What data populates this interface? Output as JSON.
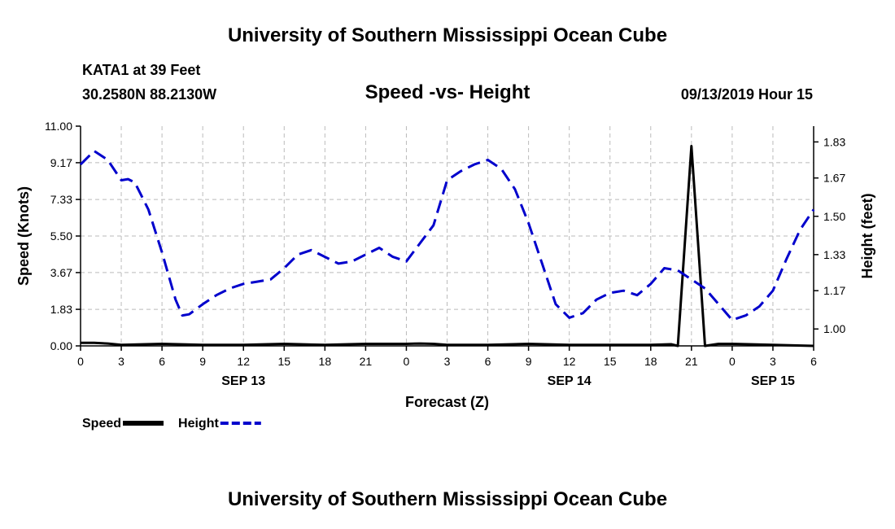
{
  "header": {
    "title_top": "University of Southern Mississippi Ocean Cube",
    "station": "KATA1 at 39 Feet",
    "coords": "30.2580N 88.2130W",
    "date": "09/13/2019 Hour 15"
  },
  "footer": {
    "title_bottom": "University of Southern Mississippi Ocean Cube"
  },
  "colors": {
    "speed": "#000000",
    "height": "#0000cc",
    "grid": "#bbbbbb"
  },
  "chart_data": {
    "type": "line",
    "title": "Speed -vs- Height",
    "xlabel": "Forecast (Z)",
    "ylabel_left": "Speed (Knots)",
    "ylabel_right": "Height (feet)",
    "x_range": [
      0,
      54
    ],
    "x_ticks": [
      {
        "x": 0,
        "label": "0"
      },
      {
        "x": 3,
        "label": "3"
      },
      {
        "x": 6,
        "label": "6"
      },
      {
        "x": 9,
        "label": "9"
      },
      {
        "x": 12,
        "label": "12"
      },
      {
        "x": 15,
        "label": "15"
      },
      {
        "x": 18,
        "label": "18"
      },
      {
        "x": 21,
        "label": "21"
      },
      {
        "x": 24,
        "label": "0"
      },
      {
        "x": 27,
        "label": "3"
      },
      {
        "x": 30,
        "label": "6"
      },
      {
        "x": 33,
        "label": "9"
      },
      {
        "x": 36,
        "label": "12"
      },
      {
        "x": 39,
        "label": "15"
      },
      {
        "x": 42,
        "label": "18"
      },
      {
        "x": 45,
        "label": "21"
      },
      {
        "x": 48,
        "label": "0"
      },
      {
        "x": 51,
        "label": "3"
      },
      {
        "x": 54,
        "label": "6"
      }
    ],
    "day_labels": [
      {
        "x": 12,
        "label": "SEP 13"
      },
      {
        "x": 36,
        "label": "SEP 14"
      },
      {
        "x": 51,
        "label": "SEP 15"
      }
    ],
    "y_left": {
      "range": [
        0,
        11
      ],
      "ticks": [
        0,
        1.83,
        3.67,
        5.5,
        7.33,
        9.17,
        11
      ],
      "tick_labels": [
        "0.00",
        "1.83",
        "3.67",
        "5.50",
        "7.33",
        "9.17",
        "11.00"
      ]
    },
    "y_right": {
      "range": [
        0.925,
        1.9
      ],
      "ticks": [
        1.0,
        1.17,
        1.33,
        1.5,
        1.67,
        1.83
      ],
      "tick_labels": [
        "1.00",
        "1.17",
        "1.33",
        "1.50",
        "1.67",
        "1.83"
      ]
    },
    "series": [
      {
        "name": "Speed",
        "axis": "left",
        "style": "solid",
        "x": [
          0,
          1,
          2,
          3,
          6,
          9,
          12,
          15,
          18,
          21,
          24,
          25,
          26,
          27,
          30,
          33,
          36,
          39,
          42,
          43.5,
          44,
          45,
          45.5,
          46,
          47,
          48,
          51,
          54
        ],
        "y": [
          0.15,
          0.15,
          0.12,
          0.05,
          0.1,
          0.05,
          0.05,
          0.1,
          0.05,
          0.1,
          0.1,
          0.12,
          0.1,
          0.05,
          0.05,
          0.1,
          0.05,
          0.05,
          0.05,
          0.08,
          0.0,
          10.0,
          5.0,
          0.0,
          0.1,
          0.1,
          0.05,
          0.0
        ]
      },
      {
        "name": "Height",
        "axis": "right",
        "style": "dashed",
        "x": [
          0,
          1,
          2,
          3,
          3.5,
          4,
          5,
          6,
          7,
          7.5,
          8,
          9,
          10,
          11,
          12,
          13,
          14,
          15,
          16,
          17,
          18,
          19,
          20,
          21,
          22,
          23,
          24,
          26,
          27,
          28,
          29,
          30,
          31,
          32,
          33,
          34,
          35,
          36,
          37,
          38,
          39,
          40,
          41,
          42,
          43,
          44,
          45,
          46,
          47,
          48,
          49,
          50,
          51,
          52,
          53,
          54
        ],
        "y": [
          1.73,
          1.79,
          1.75,
          1.66,
          1.665,
          1.65,
          1.53,
          1.34,
          1.13,
          1.06,
          1.065,
          1.11,
          1.15,
          1.18,
          1.2,
          1.21,
          1.22,
          1.27,
          1.33,
          1.35,
          1.32,
          1.29,
          1.3,
          1.33,
          1.36,
          1.32,
          1.3,
          1.46,
          1.66,
          1.7,
          1.73,
          1.75,
          1.71,
          1.62,
          1.47,
          1.29,
          1.11,
          1.05,
          1.07,
          1.13,
          1.16,
          1.17,
          1.15,
          1.2,
          1.27,
          1.26,
          1.22,
          1.18,
          1.11,
          1.04,
          1.06,
          1.1,
          1.17,
          1.31,
          1.44,
          1.53
        ]
      }
    ],
    "legend": [
      {
        "label": "Speed",
        "style": "solid"
      },
      {
        "label": "Height",
        "style": "dashed"
      }
    ]
  }
}
